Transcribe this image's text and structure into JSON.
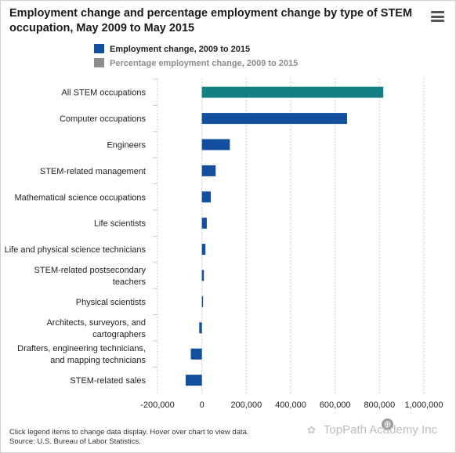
{
  "title": "Employment change and percentage employment change by type of STEM occupation, May 2009 to May 2015",
  "menu_icon": "hamburger-menu-icon",
  "colors": {
    "highlight_bar": "#138184",
    "bar": "#124f9f",
    "inactive_legend": "#8c8c8c",
    "grid": "#cccccc"
  },
  "legend": [
    {
      "label": "Employment change, 2009 to 2015",
      "color": "#124f9f",
      "active": true
    },
    {
      "label": "Percentage employment change, 2009 to 2015",
      "color": "#8c8c8c",
      "active": false
    }
  ],
  "chart_data": {
    "type": "bar",
    "orientation": "horizontal",
    "title": "Employment change and percentage employment change by type of STEM occupation, May 2009 to May 2015",
    "categories": [
      [
        "All STEM occupations"
      ],
      [
        "Computer occupations"
      ],
      [
        "Engineers"
      ],
      [
        "STEM-related management"
      ],
      [
        "Mathematical science occupations"
      ],
      [
        "Life scientists"
      ],
      [
        "Life and physical science technicians"
      ],
      [
        "STEM-related postsecondary",
        "teachers"
      ],
      [
        "Physical scientists"
      ],
      [
        "Architects, surveyors, and",
        "cartographers"
      ],
      [
        "Drafters, engineering technicians,",
        "and mapping technicians"
      ],
      [
        "STEM-related sales"
      ]
    ],
    "series": [
      {
        "name": "Employment change, 2009 to 2015",
        "values": [
          817260,
          654000,
          126000,
          62000,
          40000,
          22000,
          16000,
          9000,
          3000,
          -12000,
          -50000,
          -73000
        ],
        "highlight_index": 0
      }
    ],
    "xlim": [
      -200000,
      1000000
    ],
    "xticks": [
      -200000,
      0,
      200000,
      400000,
      600000,
      800000,
      1000000
    ],
    "xtick_labels": [
      "-200,000",
      "0",
      "200,000",
      "400,000",
      "600,000",
      "800,000",
      "1,000,000"
    ],
    "grid": "vertical dashed"
  },
  "footer": {
    "line1": "Click legend items to change data display. Hover over chart to view data.",
    "line2": "Source: U.S. Bureau of Labor Statistics."
  },
  "watermark": "TopPath Academy Inc"
}
